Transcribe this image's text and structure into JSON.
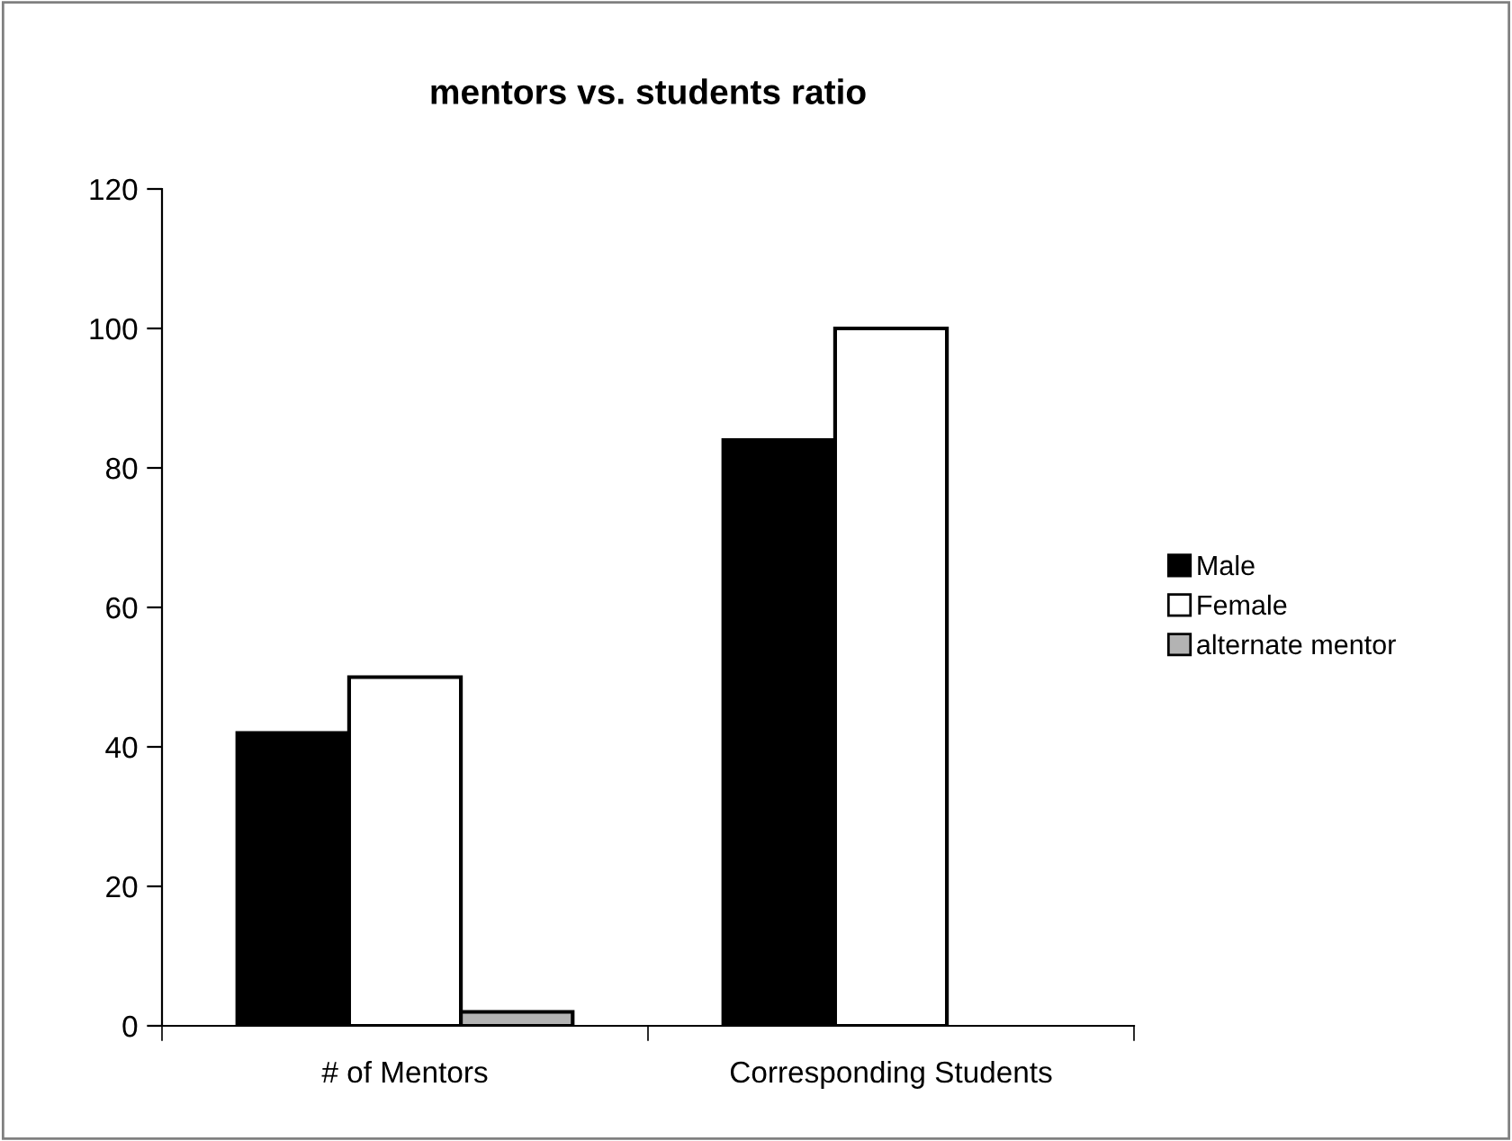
{
  "chart_data": {
    "type": "bar",
    "title": "mentors vs. students ratio",
    "categories": [
      "# of Mentors",
      "Corresponding Students"
    ],
    "series": [
      {
        "name": "Male",
        "color": "#000000",
        "values": [
          42,
          84
        ]
      },
      {
        "name": "Female",
        "color": "#ffffff",
        "values": [
          50,
          100
        ]
      },
      {
        "name": "alternate mentor",
        "color": "#b3b3b3",
        "values": [
          2,
          null
        ]
      }
    ],
    "ylim": [
      0,
      120
    ],
    "yticks": [
      0,
      20,
      40,
      60,
      80,
      100,
      120
    ],
    "grid": false,
    "legend": "right"
  }
}
